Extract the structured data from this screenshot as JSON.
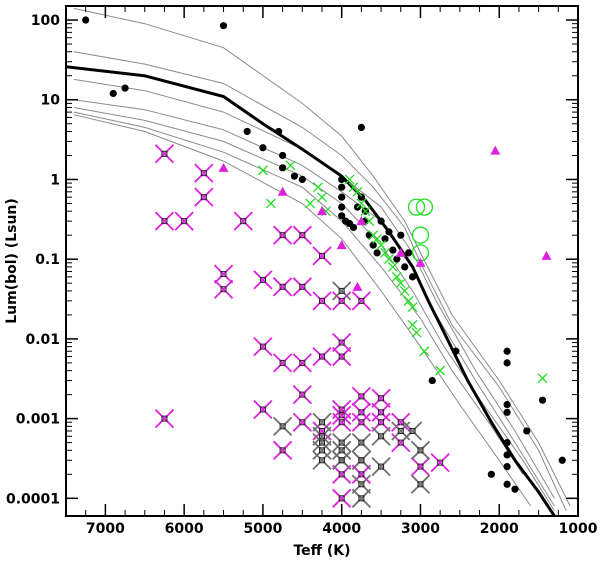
{
  "chart_data": {
    "type": "scatter",
    "title": "",
    "xlabel": "Teff (K)",
    "ylabel": "Lum(bol) (Lsun)",
    "xlim": [
      7500,
      1000
    ],
    "ylim": [
      6e-05,
      150
    ],
    "yscale": "log",
    "x_ticks": [
      "7000",
      "6000",
      "5000",
      "4000",
      "3000",
      "2000",
      "1000"
    ],
    "x_tick_values": [
      7000,
      6000,
      5000,
      4000,
      3000,
      2000,
      1000
    ],
    "y_ticks": [
      "0.0001",
      "0.001",
      "0.01",
      "0.1",
      "1",
      "10",
      "100"
    ],
    "y_tick_values": [
      0.0001,
      0.001,
      0.01,
      0.1,
      1,
      10,
      100
    ],
    "colors": {
      "black": "#000000",
      "green": "#22dd22",
      "magenta": "#dd22dd",
      "gray": "#707070",
      "line": "#8a8a8a"
    },
    "isochrones": [
      {
        "name": "thin-1",
        "x": [
          7400,
          6500,
          5500,
          4500,
          4000,
          3600,
          3200,
          3000,
          2600,
          2000,
          1500,
          1100
        ],
        "y": [
          140,
          90,
          45,
          9,
          3.5,
          1.1,
          0.3,
          0.12,
          0.02,
          0.003,
          0.0005,
          8e-05
        ]
      },
      {
        "name": "thin-2",
        "x": [
          7400,
          6500,
          5500,
          4500,
          4000,
          3600,
          3200,
          3000,
          2600,
          2000,
          1500,
          1150
        ],
        "y": [
          40,
          28,
          16,
          4.5,
          2,
          0.8,
          0.25,
          0.09,
          0.015,
          0.0025,
          0.0004,
          7e-05
        ]
      },
      {
        "name": "thin-3",
        "x": [
          7400,
          6500,
          5500,
          4500,
          4000,
          3500,
          3100,
          2800,
          2300,
          1800,
          1300
        ],
        "y": [
          18,
          13,
          7,
          2.4,
          1.1,
          0.45,
          0.12,
          0.03,
          0.004,
          0.0007,
          0.0001
        ]
      },
      {
        "name": "thin-4",
        "x": [
          7400,
          6500,
          5500,
          4500,
          4000,
          3500,
          3100,
          2800,
          2300,
          1800,
          1300
        ],
        "y": [
          10,
          7.5,
          4.2,
          1.5,
          0.7,
          0.3,
          0.08,
          0.02,
          0.003,
          0.0005,
          8e-05
        ]
      },
      {
        "name": "thin-5",
        "x": [
          7400,
          6500,
          5500,
          4500,
          4000,
          3500,
          3100,
          2700,
          2200,
          1700,
          1300
        ],
        "y": [
          8,
          5.5,
          3,
          1.1,
          0.5,
          0.15,
          0.04,
          0.008,
          0.0015,
          0.0003,
          7e-05
        ]
      },
      {
        "name": "thin-6",
        "x": [
          7400,
          6500,
          5500,
          4500,
          4000,
          3500,
          3000,
          2600,
          2100,
          1700
        ],
        "y": [
          7,
          4.5,
          2.2,
          0.8,
          0.3,
          0.08,
          0.018,
          0.004,
          0.0008,
          0.0002
        ]
      },
      {
        "name": "thin-7",
        "x": [
          7400,
          6500,
          5500,
          4500,
          4000,
          3500,
          3000,
          2500,
          2000,
          1600
        ],
        "y": [
          6.5,
          4,
          1.7,
          0.5,
          0.18,
          0.04,
          0.008,
          0.0015,
          0.0003,
          8e-05
        ]
      }
    ],
    "bold_line": {
      "name": "bold-isochrone",
      "x": [
        7500,
        6500,
        5500,
        5000,
        4500,
        4000,
        3700,
        3400,
        3100,
        2900,
        2700,
        2400,
        2100,
        1800,
        1500,
        1300
      ],
      "y": [
        26,
        20,
        11,
        5,
        2.4,
        1.1,
        0.55,
        0.22,
        0.08,
        0.03,
        0.012,
        0.003,
        0.0009,
        0.0003,
        0.00012,
        6e-05
      ]
    },
    "series": [
      {
        "name": "black-dots",
        "marker": "dot",
        "color": "#000000",
        "points": [
          [
            7250,
            100
          ],
          [
            6900,
            12
          ],
          [
            6750,
            14
          ],
          [
            5500,
            85
          ],
          [
            5200,
            4
          ],
          [
            5000,
            2.5
          ],
          [
            4800,
            4
          ],
          [
            4750,
            2
          ],
          [
            4750,
            1.4
          ],
          [
            4600,
            1.1
          ],
          [
            4500,
            1
          ],
          [
            4000,
            1
          ],
          [
            4000,
            0.8
          ],
          [
            4000,
            0.6
          ],
          [
            4000,
            0.45
          ],
          [
            4000,
            0.35
          ],
          [
            3950,
            0.3
          ],
          [
            3900,
            0.28
          ],
          [
            3850,
            0.25
          ],
          [
            3800,
            0.45
          ],
          [
            3750,
            4.5
          ],
          [
            3750,
            0.6
          ],
          [
            3700,
            0.4
          ],
          [
            3700,
            0.3
          ],
          [
            3650,
            0.2
          ],
          [
            3600,
            0.15
          ],
          [
            3550,
            0.12
          ],
          [
            3500,
            0.3
          ],
          [
            3450,
            0.18
          ],
          [
            3400,
            0.22
          ],
          [
            3350,
            0.13
          ],
          [
            3300,
            0.1
          ],
          [
            3250,
            0.2
          ],
          [
            3200,
            0.08
          ],
          [
            3150,
            0.12
          ],
          [
            3100,
            0.06
          ],
          [
            2850,
            0.003
          ],
          [
            2550,
            0.007
          ],
          [
            1900,
            0.007
          ],
          [
            1900,
            0.005
          ],
          [
            1900,
            0.0015
          ],
          [
            1900,
            0.0012
          ],
          [
            1900,
            0.0005
          ],
          [
            1900,
            0.00035
          ],
          [
            1900,
            0.00025
          ],
          [
            1900,
            0.00015
          ],
          [
            1800,
            0.00013
          ],
          [
            1650,
            0.0007
          ],
          [
            1450,
            0.0017
          ],
          [
            1200,
            0.0003
          ],
          [
            2100,
            0.0002
          ]
        ]
      },
      {
        "name": "green-crosses",
        "marker": "x",
        "color": "#22dd22",
        "points": [
          [
            5000,
            1.3
          ],
          [
            4900,
            0.5
          ],
          [
            4650,
            1.5
          ],
          [
            4400,
            0.5
          ],
          [
            4300,
            0.8
          ],
          [
            4250,
            0.6
          ],
          [
            4200,
            0.4
          ],
          [
            3900,
            1
          ],
          [
            3850,
            0.8
          ],
          [
            3800,
            0.7
          ],
          [
            3750,
            0.5
          ],
          [
            3700,
            0.4
          ],
          [
            3650,
            0.3
          ],
          [
            3600,
            0.2
          ],
          [
            3550,
            0.18
          ],
          [
            3500,
            0.15
          ],
          [
            3450,
            0.12
          ],
          [
            3400,
            0.1
          ],
          [
            3350,
            0.08
          ],
          [
            3300,
            0.06
          ],
          [
            3250,
            0.05
          ],
          [
            3200,
            0.04
          ],
          [
            3150,
            0.03
          ],
          [
            3100,
            0.025
          ],
          [
            3100,
            0.015
          ],
          [
            3050,
            0.012
          ],
          [
            2950,
            0.007
          ],
          [
            2750,
            0.004
          ],
          [
            1450,
            0.0032
          ]
        ]
      },
      {
        "name": "green-circles",
        "marker": "circle",
        "color": "#22dd22",
        "points": [
          [
            3050,
            0.45
          ],
          [
            2950,
            0.45
          ],
          [
            3000,
            0.2
          ],
          [
            3000,
            0.12
          ]
        ]
      },
      {
        "name": "magenta-triangles",
        "marker": "triangle",
        "color": "#dd22dd",
        "points": [
          [
            5500,
            1.4
          ],
          [
            4750,
            0.7
          ],
          [
            4250,
            0.4
          ],
          [
            4000,
            0.15
          ],
          [
            3800,
            0.045
          ],
          [
            3750,
            0.3
          ],
          [
            3250,
            0.12
          ],
          [
            3000,
            0.09
          ],
          [
            2050,
            2.3
          ],
          [
            1400,
            0.11
          ]
        ]
      },
      {
        "name": "magenta-boxed-crosses",
        "marker": "boxcross",
        "color": "#dd22dd",
        "points": [
          [
            6250,
            2.1
          ],
          [
            6250,
            0.3
          ],
          [
            6000,
            0.3
          ],
          [
            5750,
            1.2
          ],
          [
            5750,
            0.6
          ],
          [
            5250,
            0.3
          ],
          [
            5000,
            0.055
          ],
          [
            4750,
            0.2
          ],
          [
            4750,
            0.045
          ],
          [
            4500,
            0.045
          ],
          [
            4500,
            0.2
          ],
          [
            4250,
            0.11
          ],
          [
            4250,
            0.03
          ],
          [
            4000,
            0.03
          ],
          [
            4000,
            0.009
          ],
          [
            4000,
            0.006
          ],
          [
            3750,
            0.03
          ],
          [
            5500,
            0.065
          ],
          [
            5500,
            0.042
          ],
          [
            5000,
            0.008
          ],
          [
            4750,
            0.005
          ],
          [
            4500,
            0.005
          ],
          [
            4250,
            0.006
          ],
          [
            4000,
            0.0013
          ],
          [
            4000,
            0.0011
          ],
          [
            4000,
            0.0009
          ],
          [
            3750,
            0.0012
          ],
          [
            3750,
            0.0009
          ],
          [
            3500,
            0.0009
          ],
          [
            3500,
            0.0012
          ],
          [
            3250,
            0.0009
          ],
          [
            3250,
            0.0005
          ],
          [
            5000,
            0.0013
          ],
          [
            4750,
            0.0004
          ],
          [
            4500,
            0.0009
          ],
          [
            4250,
            0.0007
          ],
          [
            3750,
            0.0003
          ],
          [
            3750,
            0.0002
          ],
          [
            4000,
            0.0003
          ],
          [
            4000,
            0.0002
          ],
          [
            3000,
            0.00025
          ],
          [
            2750,
            0.00028
          ],
          [
            4000,
            0.0001
          ],
          [
            6250,
            0.001
          ],
          [
            4500,
            0.002
          ],
          [
            3500,
            0.0018
          ],
          [
            3750,
            0.0019
          ]
        ]
      },
      {
        "name": "gray-boxed-crosses",
        "marker": "boxcross",
        "color": "#707070",
        "points": [
          [
            4250,
            0.0009
          ],
          [
            4000,
            0.0004
          ],
          [
            3750,
            0.0005
          ],
          [
            3500,
            0.0006
          ],
          [
            3250,
            0.0007
          ],
          [
            3100,
            0.0007
          ],
          [
            3000,
            0.0004
          ],
          [
            4750,
            0.0008
          ],
          [
            4250,
            0.0006
          ],
          [
            4250,
            0.0005
          ],
          [
            4250,
            0.0004
          ],
          [
            4250,
            0.0003
          ],
          [
            4000,
            0.0005
          ],
          [
            4000,
            0.0003
          ],
          [
            3750,
            0.0003
          ],
          [
            3750,
            0.00015
          ],
          [
            3500,
            0.00025
          ],
          [
            3000,
            0.00015
          ],
          [
            4000,
            0.04
          ],
          [
            3750,
            0.0001
          ]
        ]
      }
    ]
  }
}
